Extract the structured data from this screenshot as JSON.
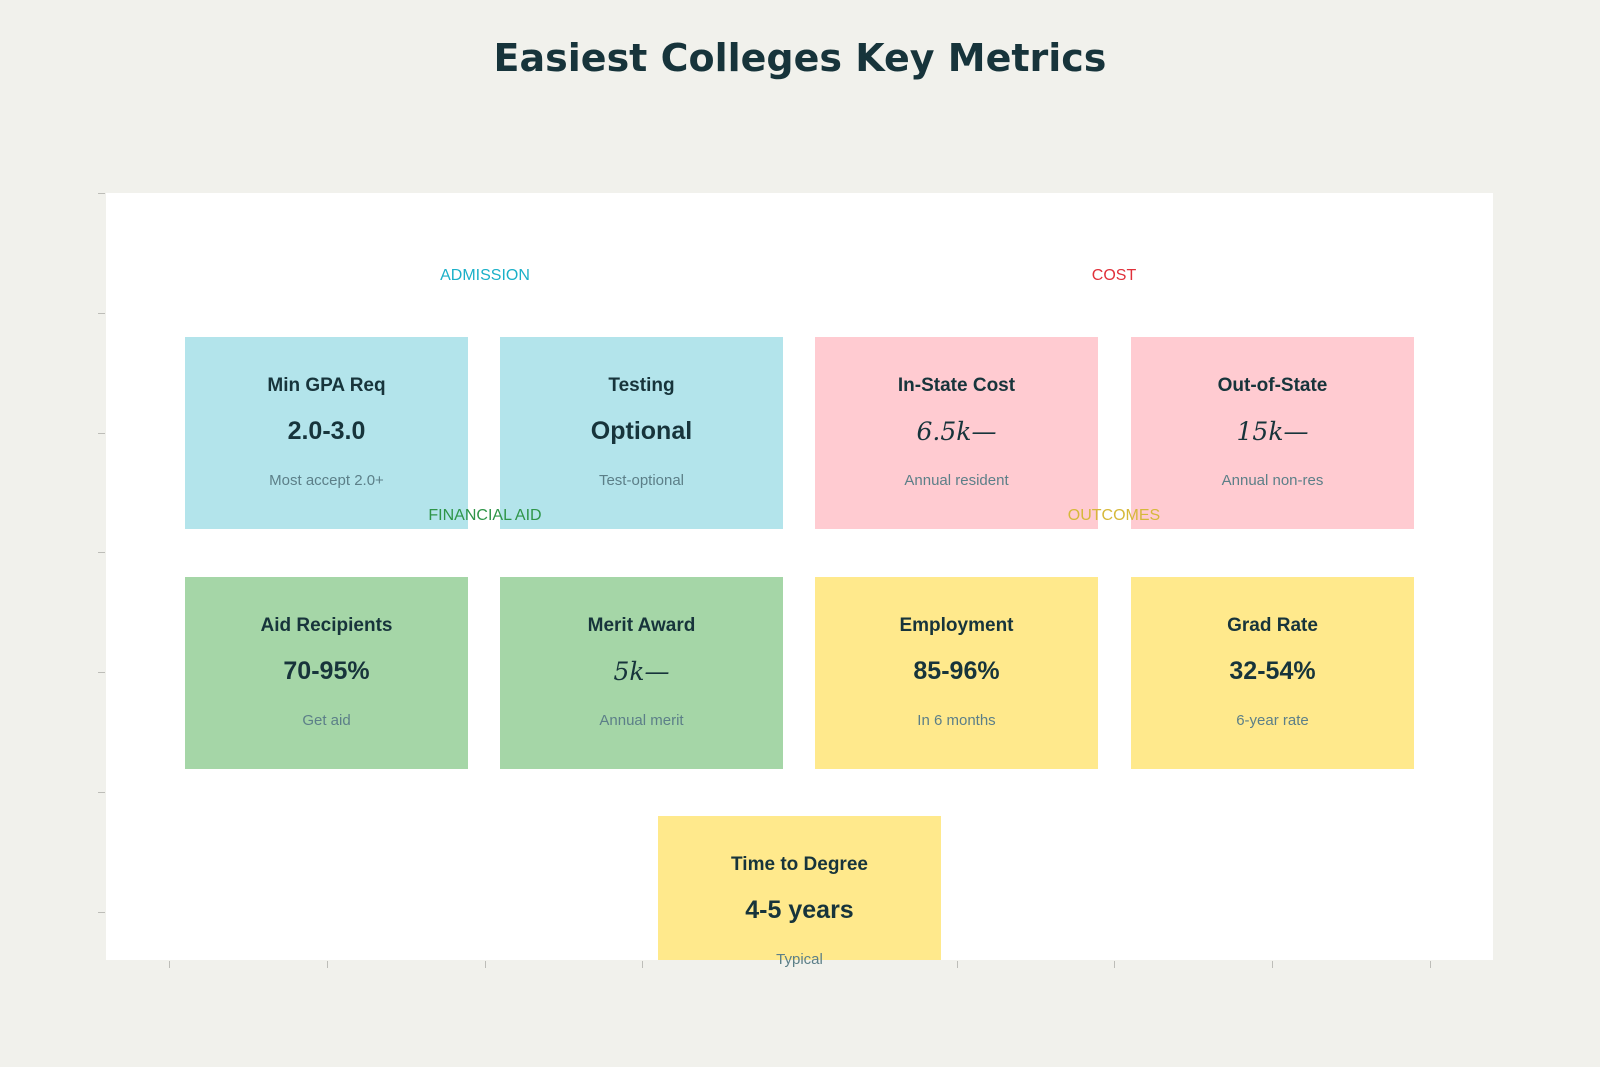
{
  "chart_data": {
    "type": "table",
    "title": "Easiest Colleges Key Metrics",
    "grid": false,
    "colors": {
      "admission": {
        "label": "#1ab0c8",
        "fill": "#b3e4eb"
      },
      "cost": {
        "label": "#e0303a",
        "fill": "#ffcbd1"
      },
      "financial_aid": {
        "label": "#2e9548",
        "fill": "#a5d6a7"
      },
      "outcomes": {
        "label": "#d6b83a",
        "fill": "#ffe98c"
      }
    },
    "sections": [
      {
        "key": "admission",
        "label": "ADMISSION"
      },
      {
        "key": "cost",
        "label": "COST"
      },
      {
        "key": "financial_aid",
        "label": "FINANCIAL AID"
      },
      {
        "key": "outcomes",
        "label": "OUTCOMES"
      }
    ],
    "cards": [
      {
        "section": "admission",
        "title": "Min GPA Req",
        "value": "2.0-3.0",
        "sub": "Most accept 2.0+"
      },
      {
        "section": "admission",
        "title": "Testing",
        "value": "Optional",
        "sub": "Test-optional"
      },
      {
        "section": "cost",
        "title": "In-State Cost",
        "value": "6.5k—",
        "sub": "Annual resident"
      },
      {
        "section": "cost",
        "title": "Out-of-State",
        "value": "15k—",
        "sub": "Annual non-res"
      },
      {
        "section": "financial_aid",
        "title": "Aid Recipients",
        "value": "70-95%",
        "sub": "Get aid"
      },
      {
        "section": "financial_aid",
        "title": "Merit Award",
        "value": "5k—",
        "sub": "Annual merit"
      },
      {
        "section": "outcomes",
        "title": "Employment",
        "value": "85-96%",
        "sub": "In 6 months"
      },
      {
        "section": "outcomes",
        "title": "Grad Rate",
        "value": "32-54%",
        "sub": "6-year rate"
      },
      {
        "section": "outcomes",
        "title": "Time to Degree",
        "value": "4-5 years",
        "sub": "Typical"
      }
    ]
  }
}
